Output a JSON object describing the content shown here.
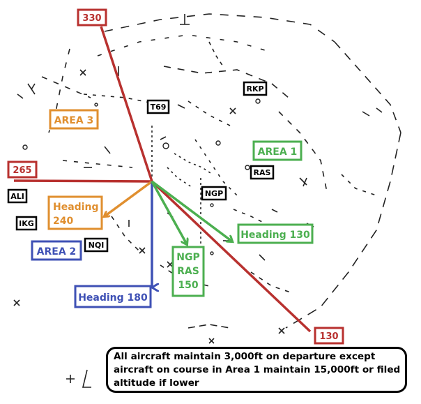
{
  "radials": {
    "r330": {
      "label": "330",
      "color": "#b8312f"
    },
    "r265": {
      "label": "265",
      "color": "#b8312f"
    },
    "r130": {
      "label": "130",
      "color": "#b8312f"
    }
  },
  "areas": {
    "area1": {
      "label": "AREA 1",
      "color": "#4caf50"
    },
    "area2": {
      "label": "AREA 2",
      "color": "#3f51b5"
    },
    "area3": {
      "label": "AREA 3",
      "color": "#e08f2f"
    }
  },
  "headings": {
    "h240": {
      "line1": "Heading",
      "line2": "240",
      "color": "#e08f2f"
    },
    "h180": {
      "label": "Heading 180",
      "color": "#3f51b5"
    },
    "h130": {
      "label": "Heading 130",
      "color": "#4caf50"
    },
    "ngp_ras": {
      "line1": "NGP",
      "line2": "RAS",
      "line3": "150",
      "color": "#4caf50"
    }
  },
  "waypoints": {
    "t69": "T69",
    "rkp": "RKP",
    "ras": "RAS",
    "ngp": "NGP",
    "ali": "ALI",
    "ikg": "IKG",
    "nqi": "NQI"
  },
  "note": {
    "line1": "All aircraft maintain 3,000ft on departure except",
    "line2": "aircraft on course in Area 1 maintain 15,000ft or filed",
    "line3": "altitude if lower"
  }
}
